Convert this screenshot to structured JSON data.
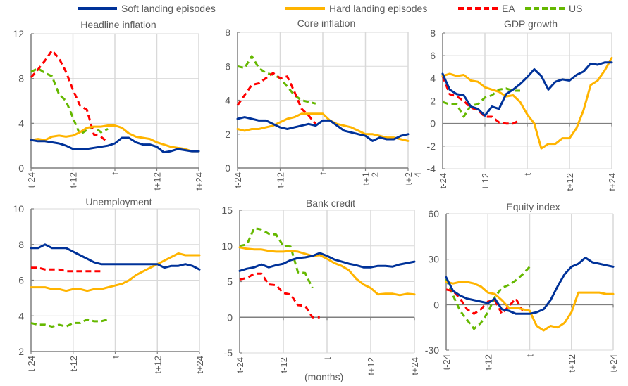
{
  "legend": [
    {
      "key": "soft",
      "label": "Soft landing episodes",
      "color": "#003299",
      "dash": false
    },
    {
      "key": "hard",
      "label": "Hard landing episodes",
      "color": "#FFB400",
      "dash": false
    },
    {
      "key": "ea",
      "label": "EA",
      "color": "#FF0000",
      "dash": true
    },
    {
      "key": "us",
      "label": "US",
      "color": "#65B800",
      "dash": true
    }
  ],
  "xaxis_label": "(months)",
  "chart_data": [
    {
      "type": "line",
      "title": "Headline inflation",
      "ylim": [
        0,
        12
      ],
      "yticks": [
        0,
        4,
        8,
        12
      ],
      "x": [
        -24,
        -22,
        -20,
        -18,
        -16,
        -14,
        -12,
        -10,
        -8,
        -6,
        -4,
        -2,
        0,
        2,
        4,
        6,
        8,
        10,
        12,
        14,
        16,
        18,
        20,
        22,
        24
      ],
      "xticks": [
        "t-24",
        "t-12",
        "t",
        "t+12",
        "t+24"
      ],
      "series": [
        {
          "name": "soft",
          "values": [
            2.5,
            2.4,
            2.4,
            2.3,
            2.2,
            2.0,
            1.7,
            1.7,
            1.7,
            1.8,
            1.9,
            2.0,
            2.2,
            2.7,
            2.7,
            2.3,
            2.1,
            2.1,
            1.9,
            1.4,
            1.5,
            1.7,
            1.6,
            1.5,
            1.5
          ]
        },
        {
          "name": "hard",
          "values": [
            2.5,
            2.6,
            2.5,
            2.8,
            2.9,
            2.8,
            2.9,
            3.2,
            3.6,
            3.7,
            3.7,
            3.8,
            3.8,
            3.6,
            3.1,
            2.8,
            2.7,
            2.6,
            2.3,
            2.1,
            1.9,
            1.8,
            1.7,
            1.5,
            1.5
          ]
        },
        {
          "name": "ea",
          "values": [
            8.1,
            8.8,
            9.6,
            10.5,
            9.8,
            8.6,
            7.0,
            5.6,
            5.2,
            3.0,
            2.8,
            2.3
          ]
        },
        {
          "name": "us",
          "values": [
            8.6,
            8.9,
            8.5,
            8.2,
            6.6,
            6.0,
            4.5,
            3.0,
            3.4,
            3.7,
            3.2,
            3.5
          ]
        }
      ]
    },
    {
      "type": "line",
      "title": "Core inflation",
      "ylim": [
        0,
        8
      ],
      "yticks": [
        0,
        2,
        4,
        6,
        8
      ],
      "x": [
        -24,
        -22,
        -20,
        -18,
        -16,
        -14,
        -12,
        -10,
        -8,
        -6,
        -4,
        -2,
        0,
        2,
        4,
        6,
        8,
        10,
        12,
        14,
        16,
        18,
        20,
        22,
        24
      ],
      "xticks": [
        "t-24",
        "t-12",
        "t",
        "t+1\n2",
        "t+2\n4"
      ],
      "series": [
        {
          "name": "soft",
          "values": [
            2.9,
            3.0,
            2.9,
            2.8,
            2.8,
            2.6,
            2.4,
            2.3,
            2.4,
            2.5,
            2.6,
            2.5,
            2.8,
            2.8,
            2.5,
            2.2,
            2.1,
            2.0,
            1.9,
            1.6,
            1.8,
            1.7,
            1.7,
            1.9,
            2.0
          ]
        },
        {
          "name": "hard",
          "values": [
            2.3,
            2.2,
            2.3,
            2.3,
            2.4,
            2.5,
            2.7,
            2.9,
            3.0,
            3.2,
            3.2,
            3.2,
            3.2,
            2.8,
            2.6,
            2.5,
            2.4,
            2.2,
            2.0,
            2.0,
            1.9,
            1.8,
            1.8,
            1.7,
            1.6
          ]
        },
        {
          "name": "ea",
          "values": [
            3.7,
            4.3,
            4.9,
            5.0,
            5.3,
            5.6,
            5.3,
            5.4,
            4.5,
            3.5,
            3.1,
            2.6
          ]
        },
        {
          "name": "us",
          "values": [
            6.0,
            5.9,
            6.6,
            5.9,
            5.6,
            5.5,
            5.3,
            4.8,
            4.3,
            4.0,
            3.9,
            3.8
          ]
        }
      ]
    },
    {
      "type": "line",
      "title": "GDP growth",
      "ylim": [
        -4,
        8
      ],
      "yticks": [
        -4,
        -2,
        0,
        2,
        4,
        6,
        8
      ],
      "x": [
        -24,
        -22,
        -20,
        -18,
        -16,
        -14,
        -12,
        -10,
        -8,
        -6,
        -4,
        -2,
        0,
        2,
        4,
        6,
        8,
        10,
        12,
        14,
        16,
        18,
        20,
        22,
        24
      ],
      "xticks": [
        "t-24",
        "t-12",
        "t",
        "t+12",
        "t+24"
      ],
      "series": [
        {
          "name": "soft",
          "values": [
            4.4,
            3.0,
            2.6,
            2.5,
            1.5,
            1.3,
            0.7,
            1.5,
            1.3,
            2.6,
            3.0,
            3.5,
            4.1,
            4.8,
            4.2,
            3.0,
            3.7,
            3.9,
            3.8,
            4.3,
            4.6,
            5.3,
            5.2,
            5.4,
            5.4
          ]
        },
        {
          "name": "hard",
          "values": [
            4.2,
            4.4,
            4.2,
            4.3,
            3.8,
            3.7,
            3.2,
            3.0,
            2.8,
            2.4,
            2.5,
            1.9,
            0.8,
            0.0,
            -2.2,
            -1.8,
            -1.8,
            -1.3,
            -1.3,
            -0.4,
            1.2,
            3.4,
            3.8,
            4.7,
            5.8
          ]
        },
        {
          "name": "ea",
          "values": [
            4.2,
            2.6,
            2.4,
            2.0,
            1.4,
            1.2,
            0.6,
            0.6,
            0.1,
            0.0,
            0.0,
            0.3
          ]
        },
        {
          "name": "us",
          "values": [
            1.9,
            1.7,
            1.7,
            0.6,
            1.6,
            1.7,
            2.3,
            2.5,
            3.0,
            3.1,
            2.9,
            2.9
          ]
        }
      ]
    },
    {
      "type": "line",
      "title": "Unemployment",
      "ylim": [
        2,
        10
      ],
      "yticks": [
        2,
        4,
        6,
        8,
        10
      ],
      "x": [
        -24,
        -22,
        -20,
        -18,
        -16,
        -14,
        -12,
        -10,
        -8,
        -6,
        -4,
        -2,
        0,
        2,
        4,
        6,
        8,
        10,
        12,
        14,
        16,
        18,
        20,
        22,
        24
      ],
      "xticks": [
        "t-24",
        "t-12",
        "t",
        "t+12",
        "t+24"
      ],
      "series": [
        {
          "name": "soft",
          "values": [
            7.8,
            7.8,
            8.0,
            7.8,
            7.8,
            7.8,
            7.6,
            7.4,
            7.2,
            7.0,
            6.9,
            6.9,
            6.9,
            6.9,
            6.9,
            6.9,
            6.9,
            6.9,
            6.9,
            6.7,
            6.8,
            6.8,
            6.9,
            6.8,
            6.6
          ]
        },
        {
          "name": "hard",
          "values": [
            5.6,
            5.6,
            5.6,
            5.5,
            5.5,
            5.4,
            5.5,
            5.5,
            5.4,
            5.5,
            5.5,
            5.6,
            5.7,
            5.8,
            6.0,
            6.3,
            6.5,
            6.7,
            6.9,
            7.1,
            7.3,
            7.5,
            7.4,
            7.4,
            7.4
          ]
        },
        {
          "name": "ea",
          "values": [
            6.7,
            6.7,
            6.6,
            6.6,
            6.6,
            6.5,
            6.5,
            6.5,
            6.5,
            6.5,
            6.5
          ]
        },
        {
          "name": "us",
          "values": [
            3.6,
            3.5,
            3.5,
            3.4,
            3.5,
            3.4,
            3.6,
            3.6,
            3.8,
            3.7,
            3.7,
            3.8
          ]
        }
      ]
    },
    {
      "type": "line",
      "title": "Bank credit",
      "ylim": [
        -5,
        15
      ],
      "yticks": [
        -5,
        0,
        5,
        10,
        15
      ],
      "x": [
        -24,
        -22,
        -20,
        -18,
        -16,
        -14,
        -12,
        -10,
        -8,
        -6,
        -4,
        -2,
        0,
        2,
        4,
        6,
        8,
        10,
        12,
        14,
        16,
        18,
        20,
        22,
        24
      ],
      "xticks": [
        "t-24",
        "t-12",
        "t",
        "t+12",
        "t+24"
      ],
      "series": [
        {
          "name": "soft",
          "values": [
            6.5,
            6.8,
            7.0,
            7.4,
            7.0,
            7.3,
            7.5,
            8.0,
            8.3,
            8.4,
            8.6,
            9.0,
            8.6,
            8.1,
            7.8,
            7.5,
            7.3,
            7.0,
            7.0,
            7.2,
            7.2,
            7.1,
            7.4,
            7.6,
            7.8
          ]
        },
        {
          "name": "hard",
          "values": [
            9.8,
            9.6,
            9.5,
            9.5,
            9.3,
            9.2,
            9.2,
            9.3,
            9.2,
            8.9,
            8.6,
            8.7,
            8.2,
            7.6,
            7.2,
            6.6,
            5.4,
            4.6,
            4.1,
            3.2,
            3.3,
            3.3,
            3.1,
            3.3,
            3.2
          ]
        },
        {
          "name": "ea",
          "values": [
            5.3,
            5.5,
            6.1,
            6.1,
            4.6,
            4.5,
            3.4,
            3.2,
            1.7,
            1.6,
            0.0,
            0.0
          ]
        },
        {
          "name": "us",
          "values": [
            10.0,
            10.2,
            12.5,
            12.3,
            11.7,
            11.6,
            10.0,
            9.9,
            6.3,
            6.2,
            4.1
          ]
        }
      ]
    },
    {
      "type": "line",
      "title": "Equity index",
      "ylim": [
        -30,
        60
      ],
      "yticks": [
        -30,
        0,
        30,
        60
      ],
      "x": [
        -24,
        -22,
        -20,
        -18,
        -16,
        -14,
        -12,
        -10,
        -8,
        -6,
        -4,
        -2,
        0,
        2,
        4,
        6,
        8,
        10,
        12,
        14,
        16,
        18,
        20,
        22,
        24
      ],
      "xticks": [
        "t-24",
        "t-12",
        "t",
        "t+12",
        "t+24"
      ],
      "series": [
        {
          "name": "soft",
          "values": [
            18,
            9,
            6,
            4,
            3,
            2,
            1,
            4,
            -3,
            -4,
            -6,
            -6,
            -6,
            -5,
            -3,
            3,
            12,
            20,
            25,
            27,
            31,
            28,
            27,
            26,
            25
          ]
        },
        {
          "name": "hard",
          "values": [
            15,
            14,
            15,
            15,
            14,
            12,
            8,
            7,
            3,
            -2,
            -2,
            -3,
            -4,
            -14,
            -17,
            -14,
            -15,
            -12,
            -5,
            8,
            8,
            8,
            8,
            7,
            7
          ]
        },
        {
          "name": "ea",
          "values": [
            10,
            9,
            4,
            -3,
            -6,
            -3,
            2,
            3,
            -6,
            -1,
            4,
            -4
          ]
        },
        {
          "name": "us",
          "values": [
            17,
            6,
            -4,
            -10,
            -16,
            -12,
            -5,
            5,
            11,
            13,
            16,
            20,
            25
          ]
        }
      ]
    }
  ]
}
